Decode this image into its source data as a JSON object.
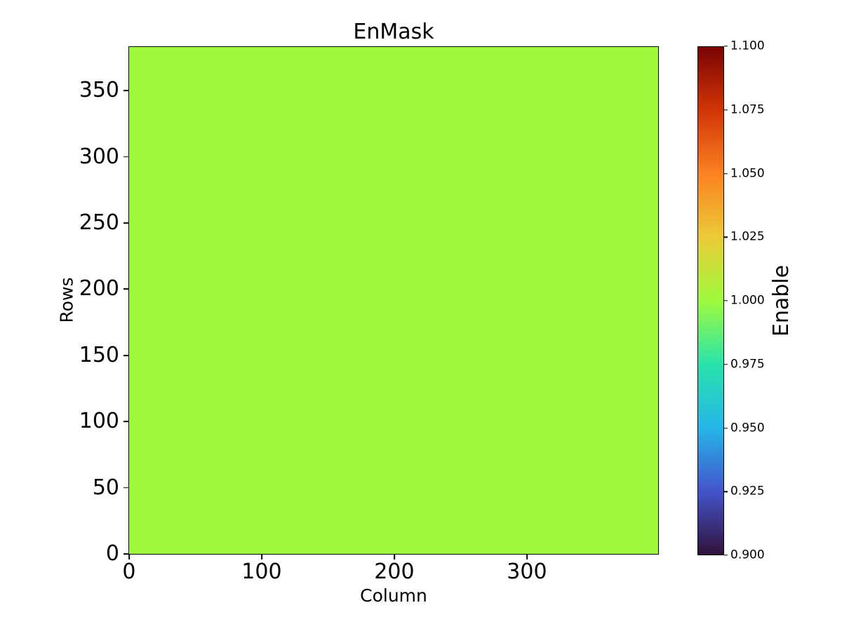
{
  "chart_data": {
    "type": "heatmap",
    "title": "EnMask",
    "xlabel": "Column",
    "ylabel": "Rows",
    "n_rows": 384,
    "n_cols": 400,
    "xlim": [
      -0.5,
      399.5
    ],
    "ylim": [
      -0.5,
      383.5
    ],
    "uniform_value": 1.0,
    "vmin": 0.9,
    "vmax": 1.1,
    "grid": false,
    "colormap": "turbo",
    "fill_color": "#9ffa3e",
    "xticks": [
      0,
      100,
      200,
      300
    ],
    "yticks": [
      0,
      50,
      100,
      150,
      200,
      250,
      300,
      350
    ],
    "colorbar": {
      "label": "Enable",
      "ticks": [
        "1.100",
        "1.075",
        "1.050",
        "1.025",
        "1.000",
        "0.975",
        "0.950",
        "0.925",
        "0.900"
      ],
      "gradient_stops": [
        {
          "t": 0.0,
          "color": "#30123b"
        },
        {
          "t": 0.125,
          "color": "#4454cb"
        },
        {
          "t": 0.25,
          "color": "#25b6e8"
        },
        {
          "t": 0.375,
          "color": "#29e3ab"
        },
        {
          "t": 0.5,
          "color": "#9ffa3e"
        },
        {
          "t": 0.625,
          "color": "#eccb38"
        },
        {
          "t": 0.75,
          "color": "#fb8222"
        },
        {
          "t": 0.875,
          "color": "#d23507"
        },
        {
          "t": 1.0,
          "color": "#7a0403"
        }
      ]
    }
  }
}
